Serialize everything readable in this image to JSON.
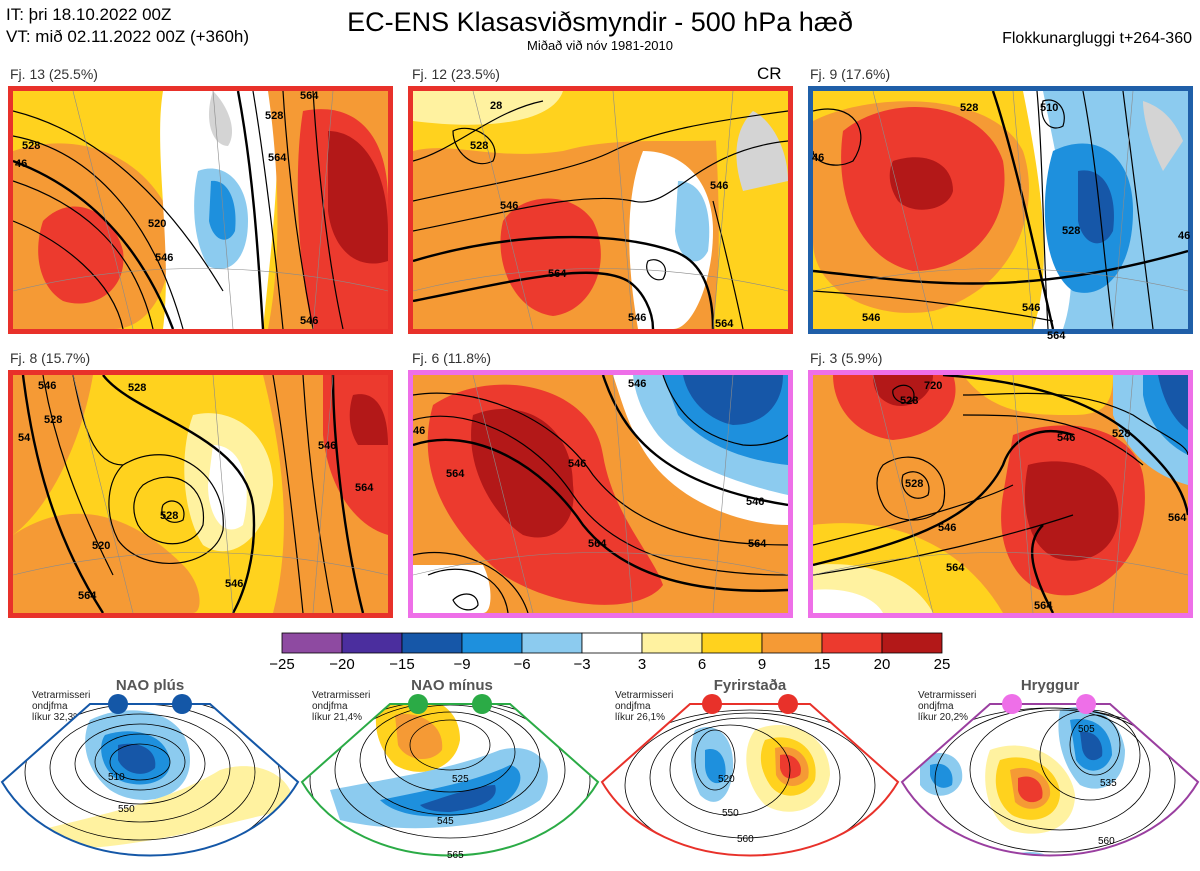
{
  "header": {
    "init_line": "IT: þri 18.10.2022 00Z",
    "valid_line": "VT: mið 02.11.2022 00Z  (+360h)",
    "title": "EC-ENS Klasasviðsmyndir - 500 hPa hæð",
    "subtitle": "Miðað við nóv 1981-2010",
    "window": "Flokkunargluggi t+264-360"
  },
  "clusters": [
    {
      "label": "Fj. 13 (25.5%)",
      "border_color": "#e8312a",
      "extra": ""
    },
    {
      "label": "Fj. 12 (23.5%)",
      "border_color": "#e8312a",
      "extra": "CR"
    },
    {
      "label": "Fj. 9 (17.6%)",
      "border_color": "#1f5fa8",
      "extra": ""
    },
    {
      "label": "Fj. 8 (15.7%)",
      "border_color": "#e8312a",
      "extra": ""
    },
    {
      "label": "Fj. 6 (11.8%)",
      "border_color": "#ee6fe8",
      "extra": ""
    },
    {
      "label": "Fj. 3 (5.9%)",
      "border_color": "#ee6fe8",
      "extra": ""
    }
  ],
  "contour_labels": {
    "p1": [
      "528",
      "46",
      "520",
      "546",
      "528",
      "564",
      "546",
      "564"
    ],
    "p2": [
      "28",
      "528",
      "546",
      "546",
      "564",
      "546",
      "564"
    ],
    "p3": [
      "510",
      "528",
      "46",
      "528",
      "546",
      "546",
      "564",
      "46"
    ],
    "p4": [
      "546",
      "528",
      "528",
      "54",
      "528",
      "520",
      "564",
      "546",
      "546",
      "564"
    ],
    "p5": [
      "546",
      "46",
      "564",
      "546",
      "564",
      "546",
      "564"
    ],
    "p6": [
      "528",
      "720",
      "528",
      "546",
      "528",
      "564",
      "546",
      "564",
      "564"
    ]
  },
  "colorbar": {
    "ticks": [
      "−25",
      "−20",
      "−15",
      "−9",
      "−6",
      "−3",
      "3",
      "6",
      "9",
      "15",
      "20",
      "25"
    ],
    "colors": [
      "#8e4aa1",
      "#4b2e9e",
      "#1657a8",
      "#1e90dd",
      "#8ccbef",
      "#ffffff",
      "#fff2a0",
      "#ffd21e",
      "#f59a35",
      "#ec3a2e",
      "#b31818"
    ]
  },
  "regimes": [
    {
      "name": "NAO plús",
      "note": [
        "Vetrarmisseri",
        "ondjfma",
        "líkur 32,3%"
      ],
      "color": "#1457a7",
      "contours": [
        "510",
        "550"
      ]
    },
    {
      "name": "NAO mínus",
      "note": [
        "Vetrarmisseri",
        "ondjfma",
        "líkur 21,4%"
      ],
      "color": "#2bab46",
      "contours": [
        "525",
        "545",
        "565"
      ]
    },
    {
      "name": "Fyrirstaða",
      "note": [
        "Vetrarmisseri",
        "ondjfma",
        "líkur 26,1%"
      ],
      "color": "#e8312a",
      "contours": [
        "520",
        "550",
        "560"
      ]
    },
    {
      "name": "Hryggur",
      "note": [
        "Vetrarmisseri",
        "ondjfma",
        "líkur 20,2%"
      ],
      "color": "#9a3fa0",
      "contours": [
        "505",
        "535",
        "560"
      ]
    }
  ]
}
